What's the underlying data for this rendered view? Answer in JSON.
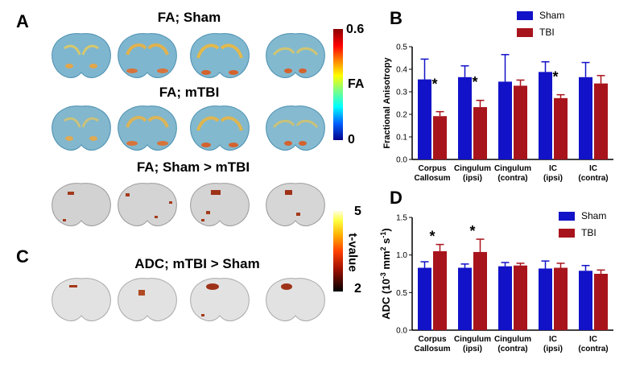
{
  "panels": {
    "a": "A",
    "b": "B",
    "c": "C",
    "d": "D"
  },
  "titles": {
    "fa_sham": "FA; Sham",
    "fa_mtbi": "FA; mTBI",
    "fa_contrast": "FA; Sham > mTBI",
    "adc_contrast": "ADC; mTBI > Sham"
  },
  "colorbars": {
    "fa": {
      "max": "0.6",
      "min": "0",
      "title": "FA"
    },
    "t": {
      "max": "5",
      "min": "2",
      "title": "t-value"
    }
  },
  "colors": {
    "sham": "#1212c8",
    "tbi": "#a8141c"
  },
  "chart_data": [
    {
      "id": "B",
      "type": "bar",
      "categories": [
        [
          "Corpus",
          "Callosum"
        ],
        [
          "Cingulum",
          "(ipsi)"
        ],
        [
          "Cingulum",
          "(contra)"
        ],
        [
          "IC",
          "(ipsi)"
        ],
        [
          "IC",
          "(contra)"
        ]
      ],
      "series": [
        {
          "name": "Sham",
          "values": [
            0.355,
            0.365,
            0.345,
            0.388,
            0.365
          ],
          "errors": [
            0.09,
            0.05,
            0.12,
            0.045,
            0.065
          ]
        },
        {
          "name": "TBI",
          "values": [
            0.192,
            0.232,
            0.327,
            0.272,
            0.337
          ],
          "errors": [
            0.02,
            0.03,
            0.025,
            0.015,
            0.035
          ]
        }
      ],
      "significance": [
        "*",
        "*",
        "",
        "*",
        ""
      ],
      "ylabel": "Fractional Anisotropy",
      "ylim": [
        0,
        0.5
      ],
      "yticks": [
        "0.0",
        "0.1",
        "0.2",
        "0.3",
        "0.4",
        "0.5"
      ],
      "legend": "top-center"
    },
    {
      "id": "D",
      "type": "bar",
      "categories": [
        [
          "Corpus",
          "Callosum"
        ],
        [
          "Cingulum",
          "(ipsi)"
        ],
        [
          "Cingulum",
          "(contra)"
        ],
        [
          "IC",
          "(ipsi)"
        ],
        [
          "IC",
          "(contra)"
        ]
      ],
      "series": [
        {
          "name": "Sham",
          "values": [
            0.83,
            0.83,
            0.85,
            0.82,
            0.79
          ],
          "errors": [
            0.08,
            0.05,
            0.05,
            0.1,
            0.07
          ]
        },
        {
          "name": "TBI",
          "values": [
            1.05,
            1.04,
            0.86,
            0.83,
            0.75
          ],
          "errors": [
            0.09,
            0.17,
            0.03,
            0.06,
            0.05
          ]
        }
      ],
      "significance": [
        "*",
        "*",
        "",
        "",
        ""
      ],
      "ylabel": "ADC (10-3 mm2 s-1)",
      "ylim": [
        0,
        1.5
      ],
      "yticks": [
        "0.0",
        "0.5",
        "1.0",
        "1.5"
      ],
      "legend": "top-right"
    }
  ]
}
